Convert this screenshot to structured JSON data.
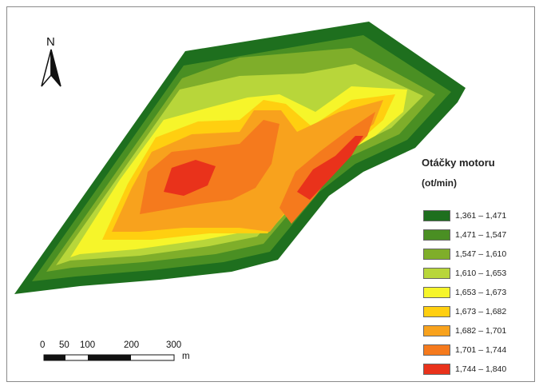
{
  "legend": {
    "title": "Otáčky motoru",
    "unit": "(ot/min)",
    "classes": [
      {
        "label": "1,361 – 1,471",
        "color": "#1e6f1e"
      },
      {
        "label": "1,471 – 1,547",
        "color": "#4a8f23"
      },
      {
        "label": "1,547 – 1,610",
        "color": "#7fae2a"
      },
      {
        "label": "1,610 – 1,653",
        "color": "#b8d63a"
      },
      {
        "label": "1,653 – 1,673",
        "color": "#f6f52a"
      },
      {
        "label": "1,673 – 1,682",
        "color": "#ffcf10"
      },
      {
        "label": "1,682 – 1,701",
        "color": "#f8a21d"
      },
      {
        "label": "1,701 – 1,744",
        "color": "#f57a1d"
      },
      {
        "label": "1,744 – 1,840",
        "color": "#e9321b"
      }
    ]
  },
  "north_arrow": {
    "label": "N"
  },
  "scale_bar": {
    "ticks": [
      "0",
      "50",
      "100",
      "200",
      "300"
    ],
    "unit": "m"
  }
}
